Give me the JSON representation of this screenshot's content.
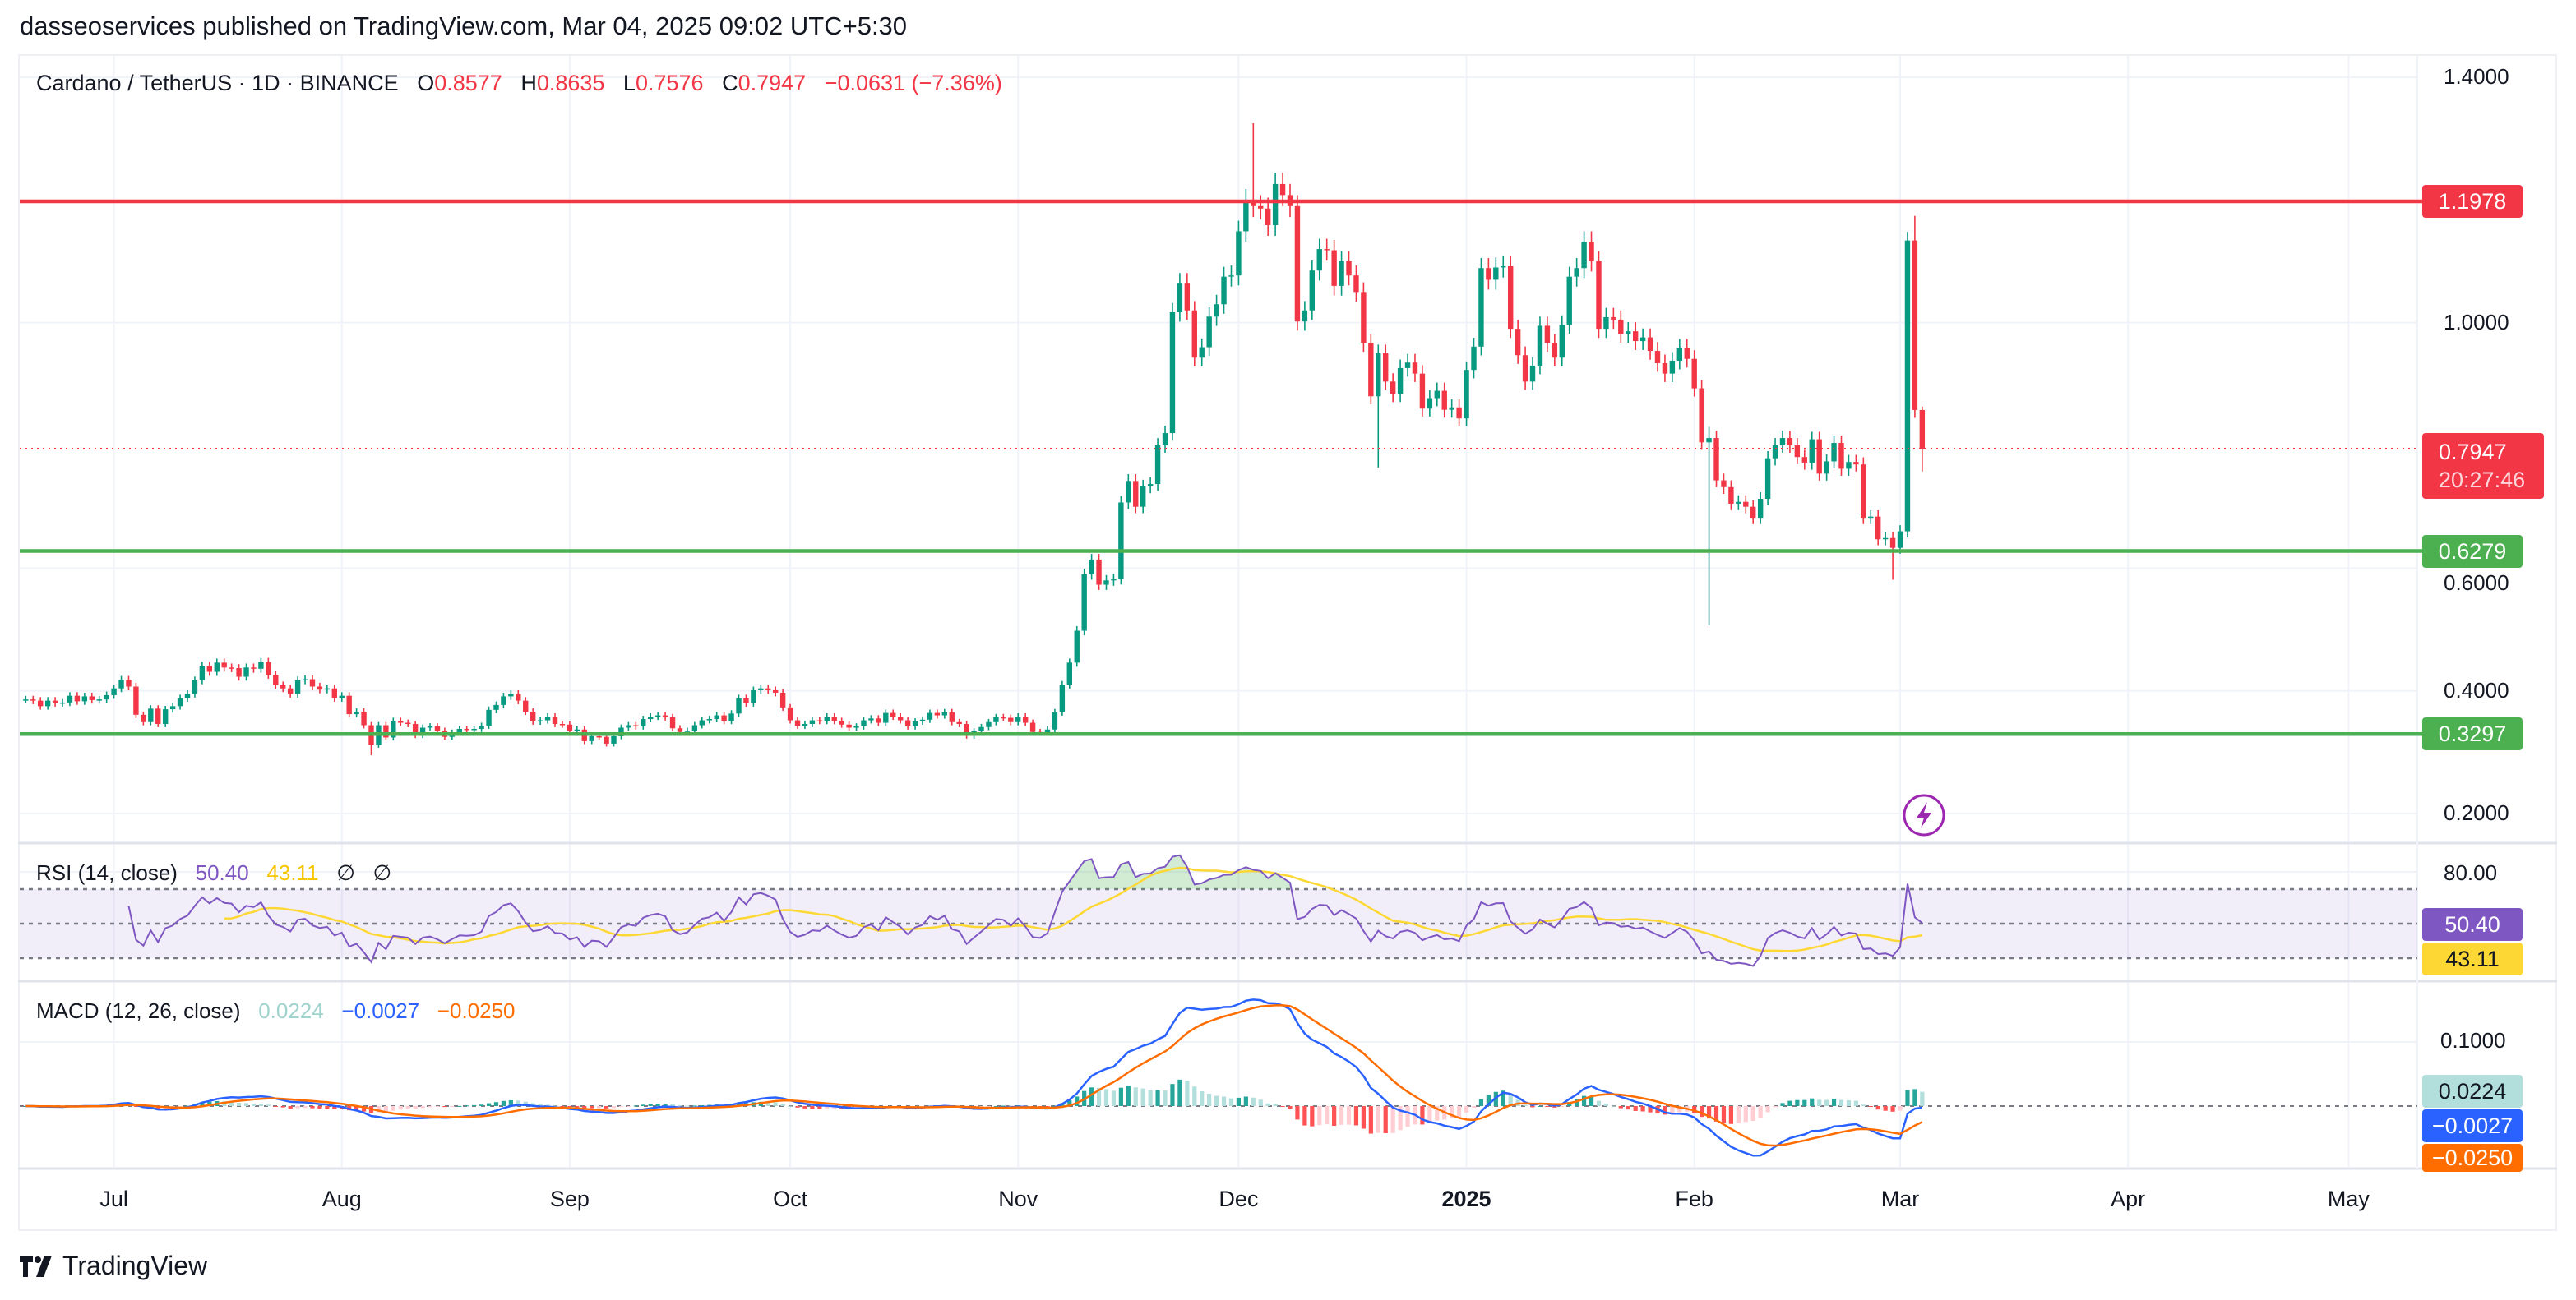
{
  "header": {
    "published": "dasseoservices published on TradingView.com, Mar 04, 2025 09:02 UTC+5:30"
  },
  "legend": {
    "symbol": "Cardano / TetherUS · 1D · BINANCE",
    "o_label": "O",
    "o": "0.8577",
    "h_label": "H",
    "h": "0.8635",
    "l_label": "L",
    "l": "0.7576",
    "c_label": "C",
    "c": "0.7947",
    "change": "−0.0631 (−7.36%)"
  },
  "price_axis": {
    "ticks": [
      {
        "label": "1.4000",
        "value": 1.4
      },
      {
        "label": "1.0000",
        "value": 1.0
      },
      {
        "label": "0.6000",
        "value": 0.6
      },
      {
        "label": "0.4000",
        "value": 0.4
      },
      {
        "label": "0.2000",
        "value": 0.2
      }
    ]
  },
  "levels": [
    {
      "label": "1.1978",
      "value": 1.1978,
      "color": "#f23645"
    },
    {
      "label": "0.6279",
      "value": 0.6279,
      "color": "#4caf50"
    },
    {
      "label": "0.3297",
      "value": 0.3297,
      "color": "#4caf50"
    }
  ],
  "last_price": {
    "label": "0.7947",
    "value": 0.7947,
    "countdown": "20:27:46",
    "color": "#f23645"
  },
  "rsi": {
    "title": "RSI (14, close)",
    "value": "50.40",
    "ma": "43.11",
    "extra1": "∅",
    "extra2": "∅",
    "axis_tick": "80.00",
    "colors": {
      "line": "#7e57c2",
      "ma": "#fdd835"
    }
  },
  "macd": {
    "title": "MACD (12, 26, close)",
    "hist": "0.0224",
    "macd": "−0.0027",
    "signal": "−0.0250",
    "axis_tick": "0.1000",
    "colors": {
      "hist": "#b2dfdb",
      "macd": "#2962ff",
      "signal": "#ff6d00"
    }
  },
  "xaxis": [
    "Jul",
    "Aug",
    "Sep",
    "Oct",
    "Nov",
    "Dec",
    "2025",
    "Feb",
    "Mar",
    "Apr",
    "May"
  ],
  "logo": "TradingView",
  "chart_data": {
    "type": "candlestick",
    "title": "Cardano / TetherUS · 1D · BINANCE",
    "start_date": "2024-06-19",
    "interval": "1D",
    "ylim": [
      0.2,
      1.4
    ],
    "colors": {
      "up": "#089981",
      "down": "#f23645"
    },
    "closes": [
      0.386,
      0.384,
      0.375,
      0.384,
      0.38,
      0.381,
      0.392,
      0.383,
      0.391,
      0.385,
      0.386,
      0.393,
      0.404,
      0.418,
      0.407,
      0.361,
      0.349,
      0.371,
      0.346,
      0.37,
      0.375,
      0.388,
      0.395,
      0.417,
      0.441,
      0.431,
      0.446,
      0.438,
      0.437,
      0.423,
      0.438,
      0.436,
      0.447,
      0.426,
      0.409,
      0.404,
      0.395,
      0.417,
      0.419,
      0.407,
      0.402,
      0.404,
      0.388,
      0.392,
      0.362,
      0.366,
      0.344,
      0.312,
      0.344,
      0.324,
      0.351,
      0.348,
      0.346,
      0.328,
      0.34,
      0.342,
      0.335,
      0.325,
      0.332,
      0.338,
      0.337,
      0.338,
      0.343,
      0.369,
      0.377,
      0.391,
      0.395,
      0.384,
      0.366,
      0.35,
      0.352,
      0.358,
      0.346,
      0.345,
      0.334,
      0.337,
      0.318,
      0.326,
      0.325,
      0.314,
      0.326,
      0.34,
      0.344,
      0.342,
      0.354,
      0.358,
      0.36,
      0.357,
      0.339,
      0.333,
      0.335,
      0.344,
      0.352,
      0.354,
      0.36,
      0.351,
      0.363,
      0.388,
      0.38,
      0.401,
      0.404,
      0.401,
      0.397,
      0.373,
      0.352,
      0.343,
      0.346,
      0.352,
      0.351,
      0.358,
      0.351,
      0.345,
      0.34,
      0.342,
      0.352,
      0.355,
      0.348,
      0.364,
      0.358,
      0.352,
      0.342,
      0.35,
      0.353,
      0.364,
      0.36,
      0.365,
      0.349,
      0.346,
      0.327,
      0.334,
      0.341,
      0.349,
      0.357,
      0.356,
      0.349,
      0.358,
      0.348,
      0.333,
      0.332,
      0.337,
      0.365,
      0.41,
      0.446,
      0.498,
      0.59,
      0.614,
      0.573,
      0.58,
      0.582,
      0.707,
      0.742,
      0.7,
      0.733,
      0.737,
      0.8,
      0.82,
      1.017,
      1.065,
      1.02,
      0.943,
      0.96,
      1.01,
      1.03,
      1.075,
      1.077,
      1.149,
      1.2,
      1.19,
      1.186,
      1.159,
      1.226,
      1.208,
      1.19,
      1.002,
      1.02,
      1.085,
      1.12,
      1.118,
      1.06,
      1.1,
      1.077,
      1.05,
      0.967,
      0.88,
      0.95,
      0.904,
      0.884,
      0.926,
      0.935,
      0.917,
      0.86,
      0.877,
      0.889,
      0.858,
      0.862,
      0.844,
      0.923,
      0.961,
      1.089,
      1.07,
      1.09,
      1.092,
      0.99,
      0.947,
      0.904,
      0.93,
      0.995,
      0.967,
      0.943,
      0.997,
      1.075,
      1.089,
      1.132,
      1.1,
      0.99,
      1.009,
      1.005,
      0.982,
      0.986,
      0.97,
      0.976,
      0.954,
      0.934,
      0.917,
      0.938,
      0.959,
      0.941,
      0.893,
      0.805,
      0.812,
      0.743,
      0.732,
      0.705,
      0.708,
      0.7,
      0.682,
      0.713,
      0.779,
      0.8,
      0.812,
      0.8,
      0.781,
      0.772,
      0.81,
      0.754,
      0.774,
      0.804,
      0.762,
      0.773,
      0.769,
      0.682,
      0.684,
      0.647,
      0.649,
      0.633,
      0.66,
      1.134,
      0.8577,
      0.7947
    ],
    "overrides": {
      "2024-08-05": {
        "low": 0.295
      },
      "2024-12-03": {
        "high": 1.325
      },
      "2024-12-20": {
        "low": 0.764
      },
      "2025-02-03": {
        "low": 0.507,
        "high": 0.83
      },
      "2025-02-28": {
        "low": 0.581
      },
      "2025-03-02": {
        "high": 1.148
      },
      "2025-03-03": {
        "open": 1.134,
        "high": 1.174
      },
      "2025-03-04": {
        "open": 0.8577,
        "high": 0.8635,
        "low": 0.7576
      }
    },
    "indicators": [
      "RSI(14) with SMA(14)",
      "MACD(12,26,9)"
    ]
  }
}
